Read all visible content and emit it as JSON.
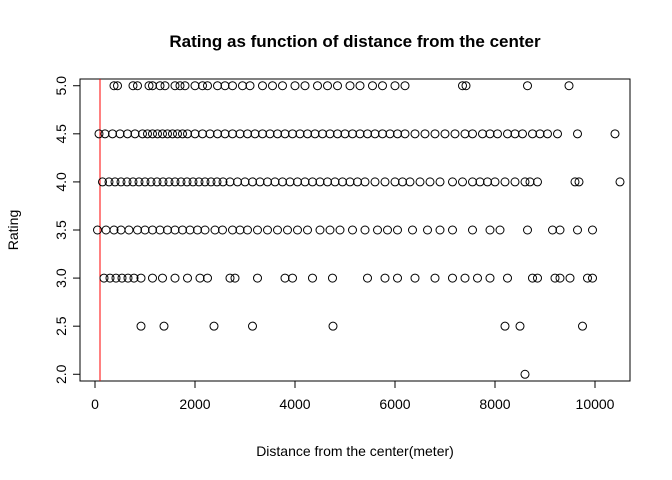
{
  "chart_data": {
    "type": "scatter",
    "title": "Rating as function of distance from the center",
    "xlabel": "Distance from the center(meter)",
    "ylabel": "Rating",
    "xlim": [
      -300,
      10700
    ],
    "ylim": [
      1.93,
      5.07
    ],
    "x_ticks": [
      0,
      2000,
      4000,
      6000,
      8000,
      10000
    ],
    "y_ticks": [
      2.0,
      2.5,
      3.0,
      3.5,
      4.0,
      4.5,
      5.0
    ],
    "x_tick_labels": [
      "0",
      "2000",
      "4000",
      "6000",
      "8000",
      "10000"
    ],
    "y_tick_labels": [
      "2.0",
      "2.5",
      "3.0",
      "3.5",
      "4.0",
      "4.5",
      "5.0"
    ],
    "vline_x": 100,
    "vline_color": "#ff0000",
    "point_color": "#000000",
    "grid": false,
    "points": [
      {
        "x": 380,
        "y": 5.0
      },
      {
        "x": 450,
        "y": 5.0
      },
      {
        "x": 760,
        "y": 5.0
      },
      {
        "x": 850,
        "y": 5.0
      },
      {
        "x": 1080,
        "y": 5.0
      },
      {
        "x": 1150,
        "y": 5.0
      },
      {
        "x": 1300,
        "y": 5.0
      },
      {
        "x": 1400,
        "y": 5.0
      },
      {
        "x": 1600,
        "y": 5.0
      },
      {
        "x": 1700,
        "y": 5.0
      },
      {
        "x": 1800,
        "y": 5.0
      },
      {
        "x": 2000,
        "y": 5.0
      },
      {
        "x": 2150,
        "y": 5.0
      },
      {
        "x": 2250,
        "y": 5.0
      },
      {
        "x": 2450,
        "y": 5.0
      },
      {
        "x": 2600,
        "y": 5.0
      },
      {
        "x": 2750,
        "y": 5.0
      },
      {
        "x": 2950,
        "y": 5.0
      },
      {
        "x": 3100,
        "y": 5.0
      },
      {
        "x": 3350,
        "y": 5.0
      },
      {
        "x": 3550,
        "y": 5.0
      },
      {
        "x": 3750,
        "y": 5.0
      },
      {
        "x": 4000,
        "y": 5.0
      },
      {
        "x": 4200,
        "y": 5.0
      },
      {
        "x": 4450,
        "y": 5.0
      },
      {
        "x": 4650,
        "y": 5.0
      },
      {
        "x": 4850,
        "y": 5.0
      },
      {
        "x": 5100,
        "y": 5.0
      },
      {
        "x": 5300,
        "y": 5.0
      },
      {
        "x": 5550,
        "y": 5.0
      },
      {
        "x": 5750,
        "y": 5.0
      },
      {
        "x": 6000,
        "y": 5.0
      },
      {
        "x": 6200,
        "y": 5.0
      },
      {
        "x": 7350,
        "y": 5.0
      },
      {
        "x": 7420,
        "y": 5.0
      },
      {
        "x": 8650,
        "y": 5.0
      },
      {
        "x": 9480,
        "y": 5.0
      },
      {
        "x": 80,
        "y": 4.5
      },
      {
        "x": 200,
        "y": 4.5
      },
      {
        "x": 350,
        "y": 4.5
      },
      {
        "x": 500,
        "y": 4.5
      },
      {
        "x": 650,
        "y": 4.5
      },
      {
        "x": 800,
        "y": 4.5
      },
      {
        "x": 950,
        "y": 4.5
      },
      {
        "x": 1050,
        "y": 4.5
      },
      {
        "x": 1150,
        "y": 4.5
      },
      {
        "x": 1250,
        "y": 4.5
      },
      {
        "x": 1350,
        "y": 4.5
      },
      {
        "x": 1450,
        "y": 4.5
      },
      {
        "x": 1550,
        "y": 4.5
      },
      {
        "x": 1650,
        "y": 4.5
      },
      {
        "x": 1750,
        "y": 4.5
      },
      {
        "x": 1850,
        "y": 4.5
      },
      {
        "x": 2000,
        "y": 4.5
      },
      {
        "x": 2150,
        "y": 4.5
      },
      {
        "x": 2300,
        "y": 4.5
      },
      {
        "x": 2450,
        "y": 4.5
      },
      {
        "x": 2600,
        "y": 4.5
      },
      {
        "x": 2750,
        "y": 4.5
      },
      {
        "x": 2900,
        "y": 4.5
      },
      {
        "x": 3050,
        "y": 4.5
      },
      {
        "x": 3200,
        "y": 4.5
      },
      {
        "x": 3350,
        "y": 4.5
      },
      {
        "x": 3500,
        "y": 4.5
      },
      {
        "x": 3650,
        "y": 4.5
      },
      {
        "x": 3800,
        "y": 4.5
      },
      {
        "x": 3950,
        "y": 4.5
      },
      {
        "x": 4100,
        "y": 4.5
      },
      {
        "x": 4250,
        "y": 4.5
      },
      {
        "x": 4400,
        "y": 4.5
      },
      {
        "x": 4550,
        "y": 4.5
      },
      {
        "x": 4700,
        "y": 4.5
      },
      {
        "x": 4850,
        "y": 4.5
      },
      {
        "x": 5000,
        "y": 4.5
      },
      {
        "x": 5150,
        "y": 4.5
      },
      {
        "x": 5300,
        "y": 4.5
      },
      {
        "x": 5450,
        "y": 4.5
      },
      {
        "x": 5600,
        "y": 4.5
      },
      {
        "x": 5750,
        "y": 4.5
      },
      {
        "x": 5900,
        "y": 4.5
      },
      {
        "x": 6050,
        "y": 4.5
      },
      {
        "x": 6200,
        "y": 4.5
      },
      {
        "x": 6400,
        "y": 4.5
      },
      {
        "x": 6600,
        "y": 4.5
      },
      {
        "x": 6800,
        "y": 4.5
      },
      {
        "x": 7000,
        "y": 4.5
      },
      {
        "x": 7200,
        "y": 4.5
      },
      {
        "x": 7400,
        "y": 4.5
      },
      {
        "x": 7550,
        "y": 4.5
      },
      {
        "x": 7750,
        "y": 4.5
      },
      {
        "x": 7900,
        "y": 4.5
      },
      {
        "x": 8050,
        "y": 4.5
      },
      {
        "x": 8250,
        "y": 4.5
      },
      {
        "x": 8400,
        "y": 4.5
      },
      {
        "x": 8550,
        "y": 4.5
      },
      {
        "x": 8750,
        "y": 4.5
      },
      {
        "x": 8900,
        "y": 4.5
      },
      {
        "x": 9050,
        "y": 4.5
      },
      {
        "x": 9250,
        "y": 4.5
      },
      {
        "x": 9650,
        "y": 4.5
      },
      {
        "x": 10400,
        "y": 4.5
      },
      {
        "x": 150,
        "y": 4.0
      },
      {
        "x": 280,
        "y": 4.0
      },
      {
        "x": 400,
        "y": 4.0
      },
      {
        "x": 520,
        "y": 4.0
      },
      {
        "x": 640,
        "y": 4.0
      },
      {
        "x": 760,
        "y": 4.0
      },
      {
        "x": 880,
        "y": 4.0
      },
      {
        "x": 1000,
        "y": 4.0
      },
      {
        "x": 1120,
        "y": 4.0
      },
      {
        "x": 1240,
        "y": 4.0
      },
      {
        "x": 1360,
        "y": 4.0
      },
      {
        "x": 1480,
        "y": 4.0
      },
      {
        "x": 1600,
        "y": 4.0
      },
      {
        "x": 1720,
        "y": 4.0
      },
      {
        "x": 1840,
        "y": 4.0
      },
      {
        "x": 1960,
        "y": 4.0
      },
      {
        "x": 2080,
        "y": 4.0
      },
      {
        "x": 2200,
        "y": 4.0
      },
      {
        "x": 2320,
        "y": 4.0
      },
      {
        "x": 2440,
        "y": 4.0
      },
      {
        "x": 2560,
        "y": 4.0
      },
      {
        "x": 2700,
        "y": 4.0
      },
      {
        "x": 2850,
        "y": 4.0
      },
      {
        "x": 3000,
        "y": 4.0
      },
      {
        "x": 3150,
        "y": 4.0
      },
      {
        "x": 3300,
        "y": 4.0
      },
      {
        "x": 3450,
        "y": 4.0
      },
      {
        "x": 3600,
        "y": 4.0
      },
      {
        "x": 3750,
        "y": 4.0
      },
      {
        "x": 3900,
        "y": 4.0
      },
      {
        "x": 4050,
        "y": 4.0
      },
      {
        "x": 4200,
        "y": 4.0
      },
      {
        "x": 4350,
        "y": 4.0
      },
      {
        "x": 4500,
        "y": 4.0
      },
      {
        "x": 4650,
        "y": 4.0
      },
      {
        "x": 4800,
        "y": 4.0
      },
      {
        "x": 4950,
        "y": 4.0
      },
      {
        "x": 5100,
        "y": 4.0
      },
      {
        "x": 5250,
        "y": 4.0
      },
      {
        "x": 5400,
        "y": 4.0
      },
      {
        "x": 5600,
        "y": 4.0
      },
      {
        "x": 5800,
        "y": 4.0
      },
      {
        "x": 6000,
        "y": 4.0
      },
      {
        "x": 6150,
        "y": 4.0
      },
      {
        "x": 6300,
        "y": 4.0
      },
      {
        "x": 6500,
        "y": 4.0
      },
      {
        "x": 6700,
        "y": 4.0
      },
      {
        "x": 6900,
        "y": 4.0
      },
      {
        "x": 7150,
        "y": 4.0
      },
      {
        "x": 7350,
        "y": 4.0
      },
      {
        "x": 7550,
        "y": 4.0
      },
      {
        "x": 7700,
        "y": 4.0
      },
      {
        "x": 7850,
        "y": 4.0
      },
      {
        "x": 8000,
        "y": 4.0
      },
      {
        "x": 8200,
        "y": 4.0
      },
      {
        "x": 8400,
        "y": 4.0
      },
      {
        "x": 8600,
        "y": 4.0
      },
      {
        "x": 8700,
        "y": 4.0
      },
      {
        "x": 8850,
        "y": 4.0
      },
      {
        "x": 9600,
        "y": 4.0
      },
      {
        "x": 9680,
        "y": 4.0
      },
      {
        "x": 10500,
        "y": 4.0
      },
      {
        "x": 50,
        "y": 3.5
      },
      {
        "x": 220,
        "y": 3.5
      },
      {
        "x": 380,
        "y": 3.5
      },
      {
        "x": 520,
        "y": 3.5
      },
      {
        "x": 680,
        "y": 3.5
      },
      {
        "x": 850,
        "y": 3.5
      },
      {
        "x": 1000,
        "y": 3.5
      },
      {
        "x": 1150,
        "y": 3.5
      },
      {
        "x": 1300,
        "y": 3.5
      },
      {
        "x": 1450,
        "y": 3.5
      },
      {
        "x": 1600,
        "y": 3.5
      },
      {
        "x": 1750,
        "y": 3.5
      },
      {
        "x": 1900,
        "y": 3.5
      },
      {
        "x": 2050,
        "y": 3.5
      },
      {
        "x": 2200,
        "y": 3.5
      },
      {
        "x": 2400,
        "y": 3.5
      },
      {
        "x": 2550,
        "y": 3.5
      },
      {
        "x": 2750,
        "y": 3.5
      },
      {
        "x": 2900,
        "y": 3.5
      },
      {
        "x": 3050,
        "y": 3.5
      },
      {
        "x": 3250,
        "y": 3.5
      },
      {
        "x": 3450,
        "y": 3.5
      },
      {
        "x": 3650,
        "y": 3.5
      },
      {
        "x": 3850,
        "y": 3.5
      },
      {
        "x": 4050,
        "y": 3.5
      },
      {
        "x": 4250,
        "y": 3.5
      },
      {
        "x": 4500,
        "y": 3.5
      },
      {
        "x": 4700,
        "y": 3.5
      },
      {
        "x": 4900,
        "y": 3.5
      },
      {
        "x": 5150,
        "y": 3.5
      },
      {
        "x": 5400,
        "y": 3.5
      },
      {
        "x": 5650,
        "y": 3.5
      },
      {
        "x": 5850,
        "y": 3.5
      },
      {
        "x": 6050,
        "y": 3.5
      },
      {
        "x": 6350,
        "y": 3.5
      },
      {
        "x": 6650,
        "y": 3.5
      },
      {
        "x": 6900,
        "y": 3.5
      },
      {
        "x": 7150,
        "y": 3.5
      },
      {
        "x": 7550,
        "y": 3.5
      },
      {
        "x": 7900,
        "y": 3.5
      },
      {
        "x": 8100,
        "y": 3.5
      },
      {
        "x": 8650,
        "y": 3.5
      },
      {
        "x": 9150,
        "y": 3.5
      },
      {
        "x": 9300,
        "y": 3.5
      },
      {
        "x": 9650,
        "y": 3.5
      },
      {
        "x": 9950,
        "y": 3.5
      },
      {
        "x": 180,
        "y": 3.0
      },
      {
        "x": 300,
        "y": 3.0
      },
      {
        "x": 420,
        "y": 3.0
      },
      {
        "x": 540,
        "y": 3.0
      },
      {
        "x": 660,
        "y": 3.0
      },
      {
        "x": 780,
        "y": 3.0
      },
      {
        "x": 920,
        "y": 3.0
      },
      {
        "x": 1150,
        "y": 3.0
      },
      {
        "x": 1350,
        "y": 3.0
      },
      {
        "x": 1600,
        "y": 3.0
      },
      {
        "x": 1850,
        "y": 3.0
      },
      {
        "x": 2100,
        "y": 3.0
      },
      {
        "x": 2250,
        "y": 3.0
      },
      {
        "x": 2700,
        "y": 3.0
      },
      {
        "x": 2800,
        "y": 3.0
      },
      {
        "x": 3250,
        "y": 3.0
      },
      {
        "x": 3800,
        "y": 3.0
      },
      {
        "x": 3950,
        "y": 3.0
      },
      {
        "x": 4350,
        "y": 3.0
      },
      {
        "x": 4750,
        "y": 3.0
      },
      {
        "x": 5450,
        "y": 3.0
      },
      {
        "x": 5800,
        "y": 3.0
      },
      {
        "x": 6050,
        "y": 3.0
      },
      {
        "x": 6400,
        "y": 3.0
      },
      {
        "x": 6800,
        "y": 3.0
      },
      {
        "x": 7150,
        "y": 3.0
      },
      {
        "x": 7400,
        "y": 3.0
      },
      {
        "x": 7650,
        "y": 3.0
      },
      {
        "x": 7900,
        "y": 3.0
      },
      {
        "x": 8250,
        "y": 3.0
      },
      {
        "x": 8750,
        "y": 3.0
      },
      {
        "x": 8850,
        "y": 3.0
      },
      {
        "x": 9200,
        "y": 3.0
      },
      {
        "x": 9300,
        "y": 3.0
      },
      {
        "x": 9500,
        "y": 3.0
      },
      {
        "x": 9850,
        "y": 3.0
      },
      {
        "x": 9950,
        "y": 3.0
      },
      {
        "x": 920,
        "y": 2.5
      },
      {
        "x": 1380,
        "y": 2.5
      },
      {
        "x": 2380,
        "y": 2.5
      },
      {
        "x": 3150,
        "y": 2.5
      },
      {
        "x": 4760,
        "y": 2.5
      },
      {
        "x": 8200,
        "y": 2.5
      },
      {
        "x": 8500,
        "y": 2.5
      },
      {
        "x": 9750,
        "y": 2.5
      },
      {
        "x": 8600,
        "y": 2.0
      }
    ]
  }
}
